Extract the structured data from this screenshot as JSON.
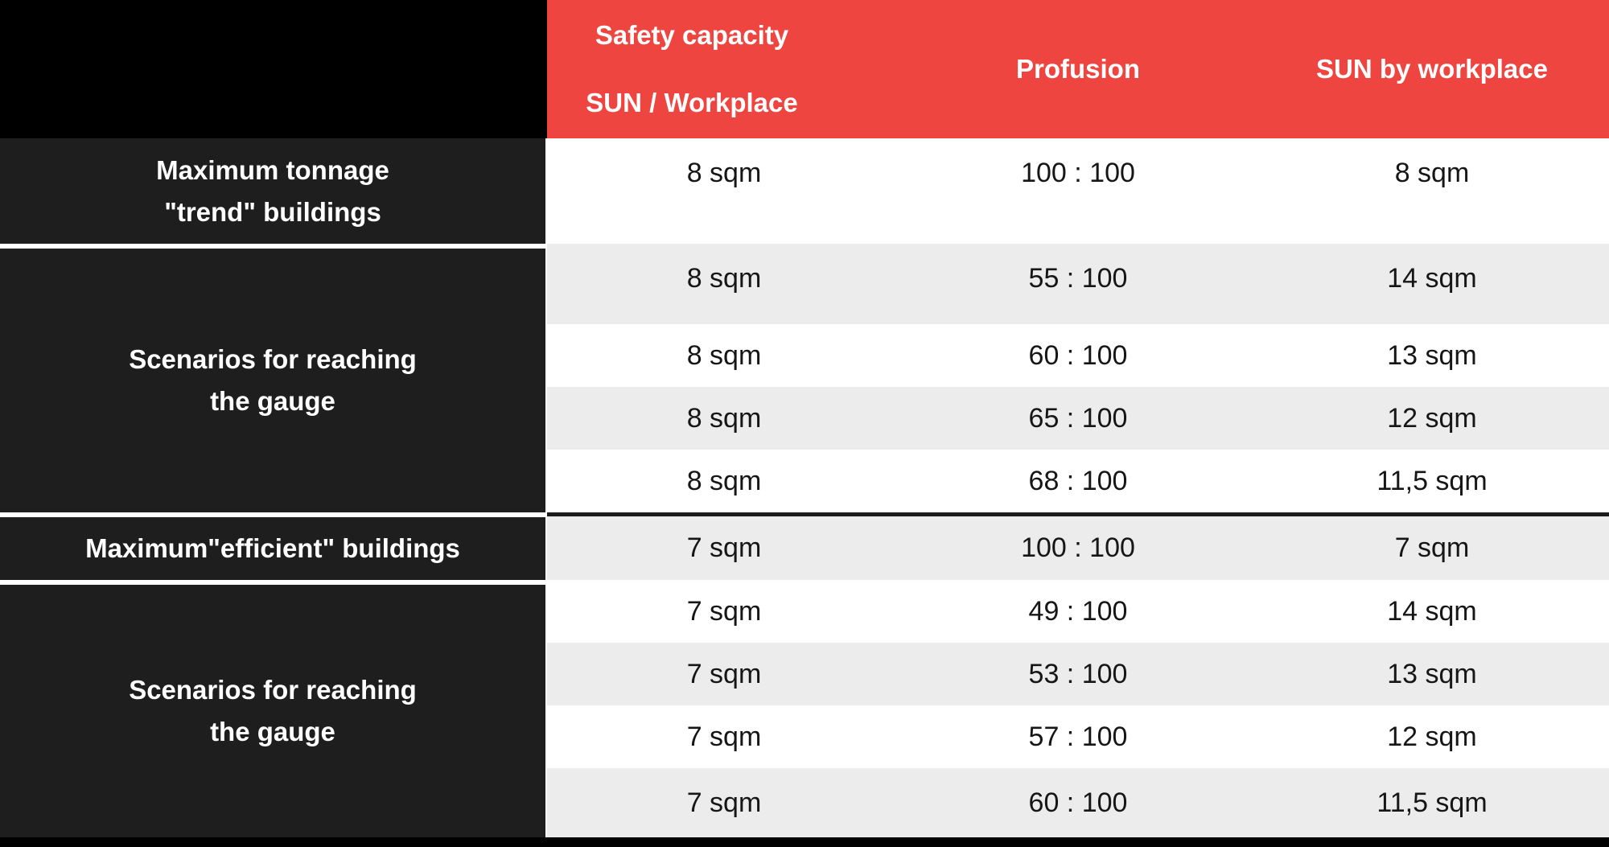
{
  "table": {
    "header": {
      "col1": {
        "line1": "Safety capacity",
        "line2": "SUN / Workplace"
      },
      "col2": "Profusion",
      "col3": "SUN by workplace"
    },
    "groups": [
      {
        "label_line1": "Maximum tonnage",
        "label_line2": "\"trend\" buildings",
        "rows": [
          [
            "8 sqm",
            "100 : 100",
            "8 sqm"
          ]
        ]
      },
      {
        "label_line1": "Scenarios for reaching",
        "label_line2": "the gauge",
        "rows": [
          [
            "8 sqm",
            "55 : 100",
            "14 sqm"
          ],
          [
            "8 sqm",
            "60 : 100",
            "13 sqm"
          ],
          [
            "8 sqm",
            "65 : 100",
            "12 sqm"
          ],
          [
            "8 sqm",
            "68 : 100",
            "11,5 sqm"
          ]
        ]
      },
      {
        "label_line1": "Maximum\"efficient\" buildings",
        "label_line2": "",
        "rows": [
          [
            "7 sqm",
            "100 : 100",
            "7 sqm"
          ]
        ]
      },
      {
        "label_line1": "Scenarios for reaching",
        "label_line2": "the gauge",
        "rows": [
          [
            "7 sqm",
            "49 : 100",
            "14 sqm"
          ],
          [
            "7 sqm",
            "53 : 100",
            "13 sqm"
          ],
          [
            "7 sqm",
            "57 : 100",
            "12 sqm"
          ],
          [
            "7 sqm",
            "60 : 100",
            "11,5 sqm"
          ]
        ]
      }
    ],
    "colors": {
      "header_bg": "#EF4540",
      "label_bg": "#1E1E1E",
      "corner_bg": "#000000",
      "stripe_bg": "#ECECEC",
      "row_bg": "#FFFFFF",
      "divider": "#1C1C1C",
      "header_text": "#FFFFFF",
      "data_text": "#161616"
    }
  }
}
